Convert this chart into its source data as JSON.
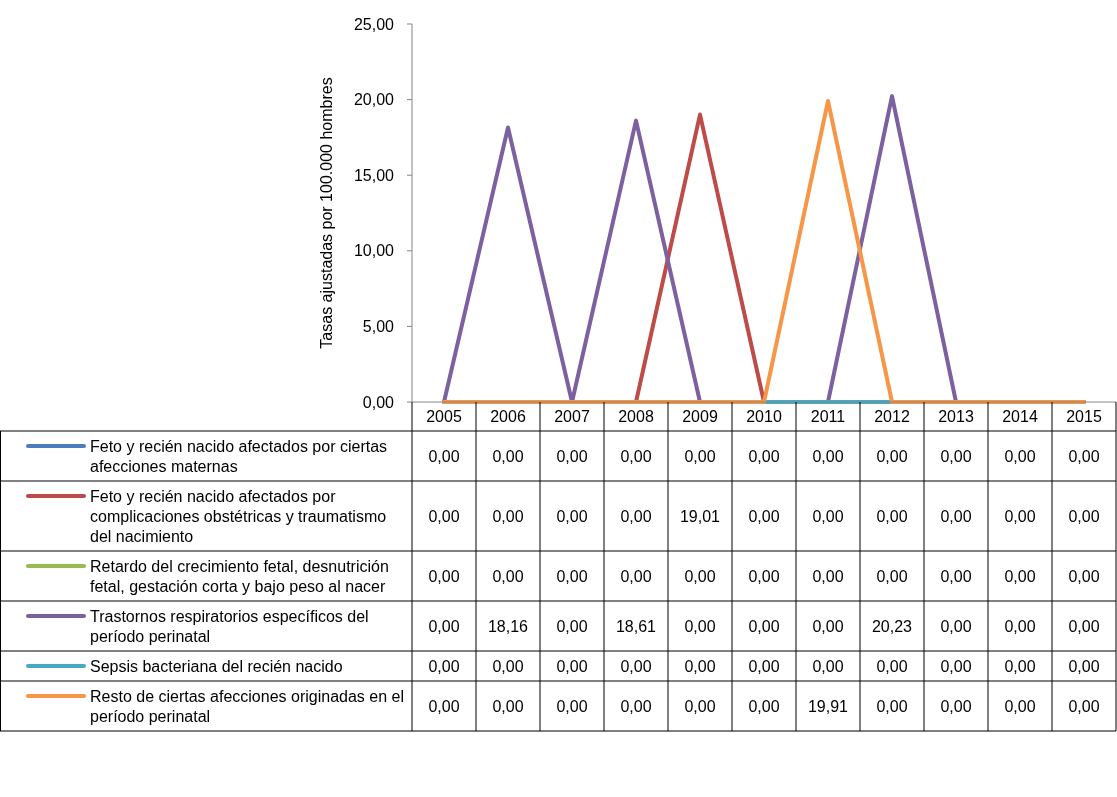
{
  "chart_data": {
    "type": "line",
    "ylabel": "Tasas ajustadas por 100.000 hombres",
    "categories": [
      "2005",
      "2006",
      "2007",
      "2008",
      "2009",
      "2010",
      "2011",
      "2012",
      "2013",
      "2014",
      "2015"
    ],
    "series": [
      {
        "name": "Feto y recién nacido afectados por ciertas afecciones maternas",
        "color": "#4a7ebb",
        "values": [
          null,
          null,
          null,
          null,
          null,
          null,
          null,
          null,
          null,
          null,
          null
        ],
        "value_labels": [
          "0,00",
          "0,00",
          "0,00",
          "0,00",
          "0,00",
          "0,00",
          "0,00",
          "0,00",
          "0,00",
          "0,00",
          "0,00"
        ]
      },
      {
        "name": "Feto y recién nacido afectados por complicaciones obstétricas y traumatismo del nacimiento",
        "color": "#be4b48",
        "values": [
          0,
          0,
          0,
          0,
          19.01,
          0,
          0,
          0,
          0,
          0,
          0
        ],
        "value_labels": [
          "0,00",
          "0,00",
          "0,00",
          "0,00",
          "19,01",
          "0,00",
          "0,00",
          "0,00",
          "0,00",
          "0,00",
          "0,00"
        ]
      },
      {
        "name": "Retardo del crecimiento fetal, desnutrición fetal, gestación corta y bajo peso al nacer",
        "color": "#98b954",
        "values": [
          null,
          null,
          null,
          null,
          null,
          null,
          null,
          null,
          null,
          null,
          null
        ],
        "value_labels": [
          "0,00",
          "0,00",
          "0,00",
          "0,00",
          "0,00",
          "0,00",
          "0,00",
          "0,00",
          "0,00",
          "0,00",
          "0,00"
        ]
      },
      {
        "name": "Trastornos respiratorios específicos del período perinatal",
        "color": "#7d60a0",
        "values": [
          0,
          18.16,
          0,
          18.61,
          0,
          0,
          0,
          20.23,
          0,
          0,
          0
        ],
        "value_labels": [
          "0,00",
          "18,16",
          "0,00",
          "18,61",
          "0,00",
          "0,00",
          "0,00",
          "20,23",
          "0,00",
          "0,00",
          "0,00"
        ]
      },
      {
        "name": "Sepsis bacteriana del recién nacido",
        "color": "#46aac5",
        "values": [
          null,
          null,
          null,
          null,
          null,
          0,
          0,
          0,
          null,
          null,
          null
        ],
        "value_labels": [
          "0,00",
          "0,00",
          "0,00",
          "0,00",
          "0,00",
          "0,00",
          "0,00",
          "0,00",
          "0,00",
          "0,00",
          "0,00"
        ]
      },
      {
        "name": "Resto de ciertas afecciones originadas en el período perinatal",
        "color": "#f79646",
        "values": [
          0,
          0,
          0,
          0,
          0,
          0,
          19.91,
          0,
          0,
          0,
          0
        ],
        "value_labels": [
          "0,00",
          "0,00",
          "0,00",
          "0,00",
          "0,00",
          "0,00",
          "19,91",
          "0,00",
          "0,00",
          "0,00",
          "0,00"
        ]
      }
    ],
    "ylim": [
      0,
      25
    ],
    "yticks": [
      {
        "value": 0,
        "label": "0,00"
      },
      {
        "value": 5,
        "label": "5,00"
      },
      {
        "value": 10,
        "label": "10,00"
      },
      {
        "value": 15,
        "label": "15,00"
      },
      {
        "value": 20,
        "label": "20,00"
      },
      {
        "value": 25,
        "label": "25,00"
      }
    ],
    "grid": false,
    "legend": "bottom",
    "marker": "none",
    "line_style": "solid"
  }
}
